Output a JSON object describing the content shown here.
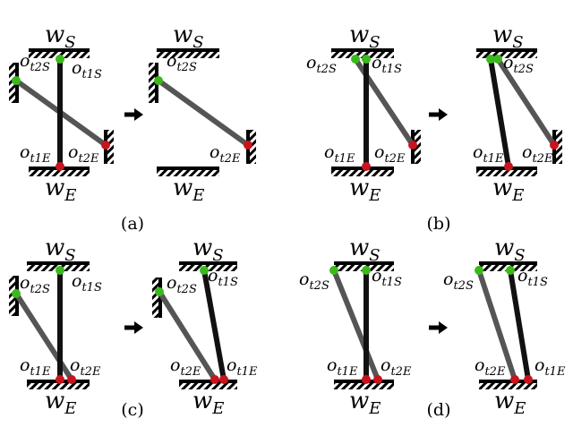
{
  "panels": [
    {
      "caption": "(a)",
      "diagrams": [
        {
          "labels": [
            {
              "base": "w",
              "sub": "S"
            },
            {
              "base": "w",
              "sub": "E"
            },
            {
              "base": "o",
              "sub": "t2S"
            },
            {
              "base": "o",
              "sub": "t1S"
            },
            {
              "base": "o",
              "sub": "t1E"
            },
            {
              "base": "o",
              "sub": "t2E"
            }
          ]
        },
        {
          "labels": [
            {
              "base": "w",
              "sub": "S"
            },
            {
              "base": "w",
              "sub": "E"
            },
            {
              "base": "o",
              "sub": "t2S"
            },
            {
              "base": "o",
              "sub": "t2E"
            }
          ]
        }
      ]
    },
    {
      "caption": "(b)",
      "diagrams": [
        {
          "labels": [
            {
              "base": "w",
              "sub": "S"
            },
            {
              "base": "w",
              "sub": "E"
            },
            {
              "base": "o",
              "sub": "t2S"
            },
            {
              "base": "o",
              "sub": "t1S"
            },
            {
              "base": "o",
              "sub": "t1E"
            },
            {
              "base": "o",
              "sub": "t2E"
            }
          ]
        },
        {
          "labels": [
            {
              "base": "w",
              "sub": "S"
            },
            {
              "base": "w",
              "sub": "E"
            },
            {
              "base": "o",
              "sub": "t2S"
            },
            {
              "base": "o",
              "sub": "t1E"
            },
            {
              "base": "o",
              "sub": "t2E"
            }
          ]
        }
      ]
    },
    {
      "caption": "(c)",
      "diagrams": [
        {
          "labels": [
            {
              "base": "w",
              "sub": "S"
            },
            {
              "base": "w",
              "sub": "E"
            },
            {
              "base": "o",
              "sub": "t2S"
            },
            {
              "base": "o",
              "sub": "t1S"
            },
            {
              "base": "o",
              "sub": "t1E"
            },
            {
              "base": "o",
              "sub": "t2E"
            }
          ]
        },
        {
          "labels": [
            {
              "base": "w",
              "sub": "S"
            },
            {
              "base": "w",
              "sub": "E"
            },
            {
              "base": "o",
              "sub": "t2S"
            },
            {
              "base": "o",
              "sub": "t1S"
            },
            {
              "base": "o",
              "sub": "t2E"
            },
            {
              "base": "o",
              "sub": "t1E"
            }
          ]
        }
      ]
    },
    {
      "caption": "(d)",
      "diagrams": [
        {
          "labels": [
            {
              "base": "w",
              "sub": "S"
            },
            {
              "base": "w",
              "sub": "E"
            },
            {
              "base": "o",
              "sub": "t2S"
            },
            {
              "base": "o",
              "sub": "t1S"
            },
            {
              "base": "o",
              "sub": "t1E"
            },
            {
              "base": "o",
              "sub": "t2E"
            }
          ]
        },
        {
          "labels": [
            {
              "base": "w",
              "sub": "S"
            },
            {
              "base": "w",
              "sub": "E"
            },
            {
              "base": "o",
              "sub": "t2S"
            },
            {
              "base": "o",
              "sub": "t1S"
            },
            {
              "base": "o",
              "sub": "t2E"
            },
            {
              "base": "o",
              "sub": "t1E"
            }
          ]
        }
      ]
    }
  ]
}
